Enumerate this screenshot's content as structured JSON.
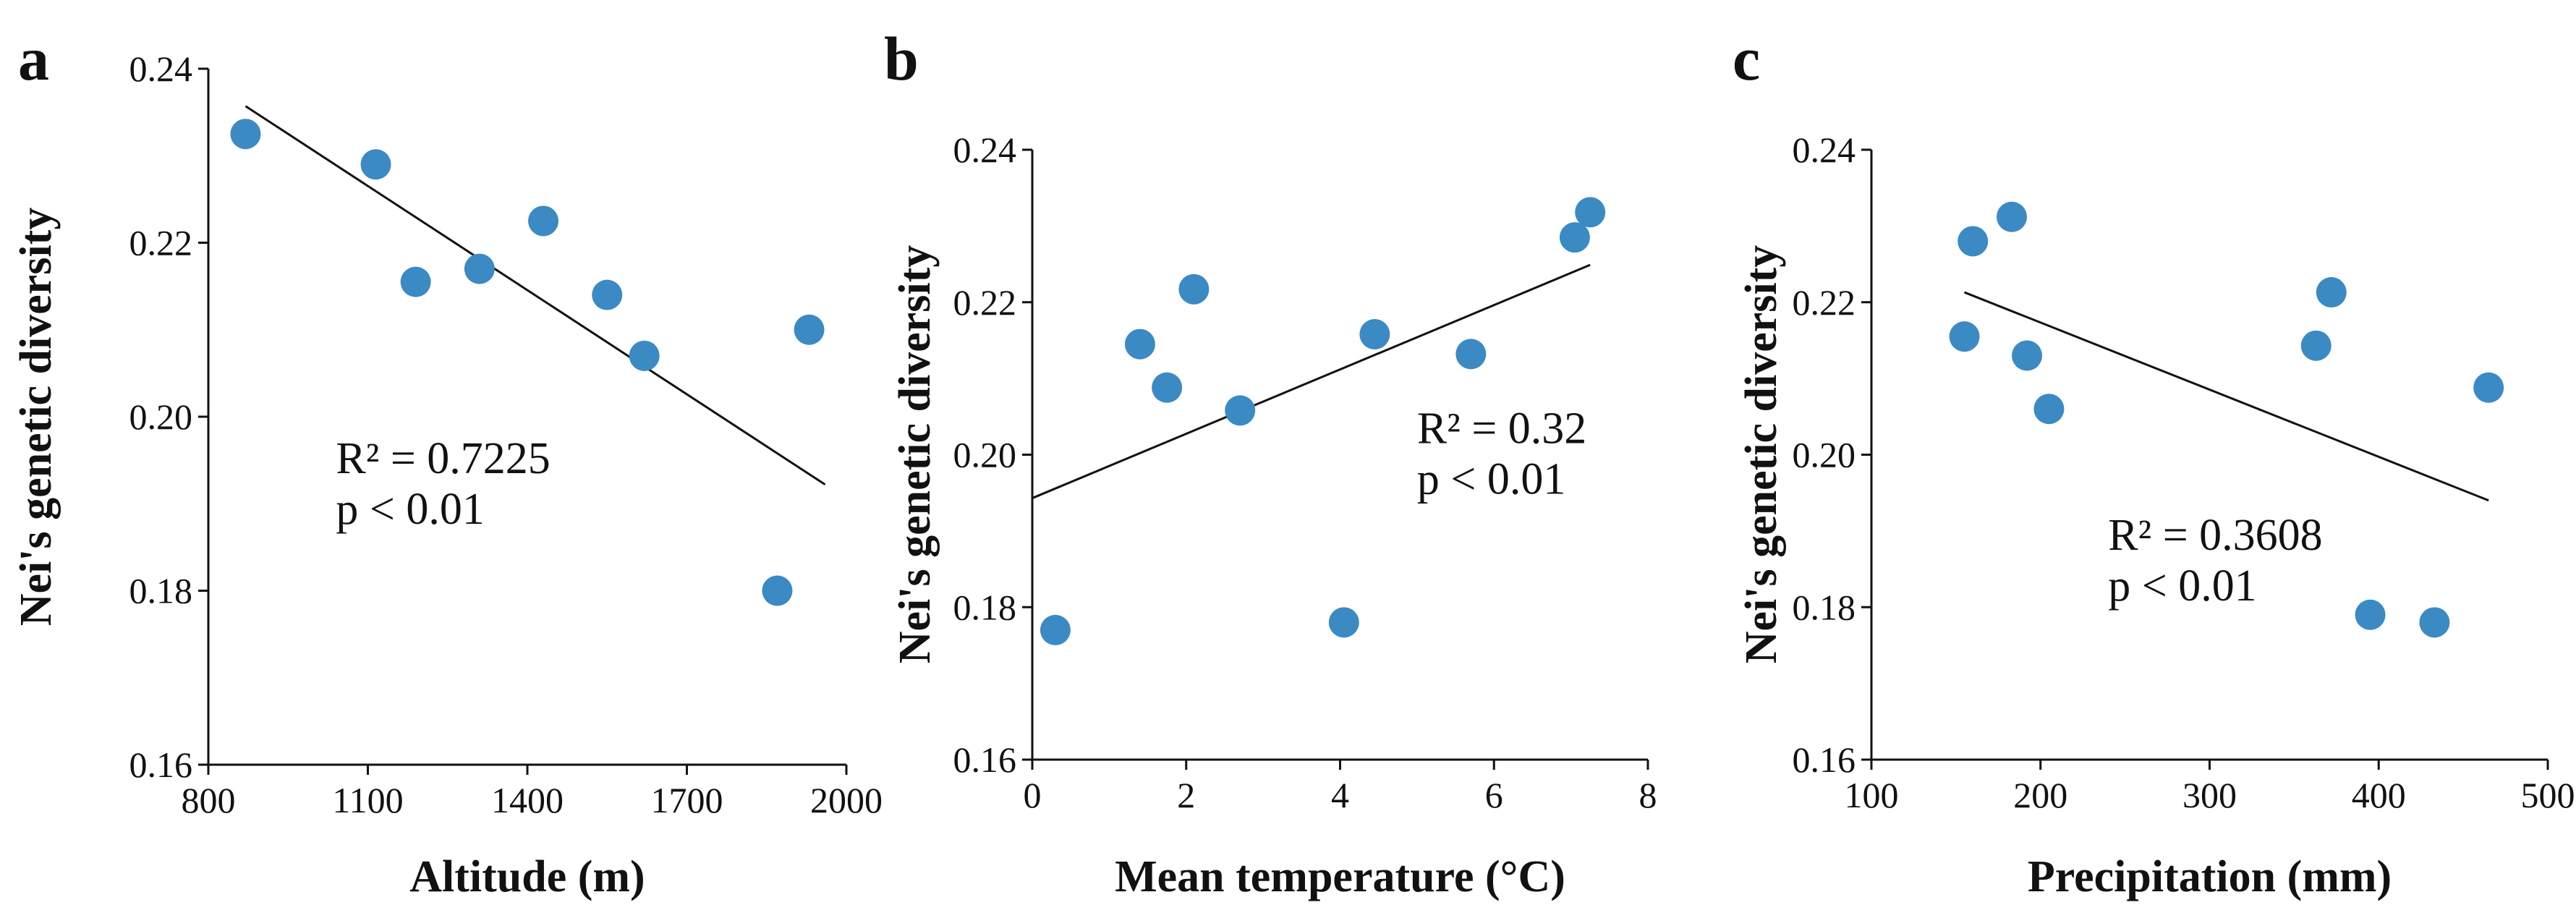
{
  "figure": {
    "marker_color": "#3b8ac4",
    "line_color": "#111111"
  },
  "chart_data": [
    {
      "type": "scatter",
      "panel_label": "a",
      "title": "",
      "xlabel": "Altitude (m)",
      "ylabel": "Nei's genetic diversity",
      "xlim": [
        800,
        2000
      ],
      "ylim": [
        0.16,
        0.24
      ],
      "xticks": [
        800,
        1100,
        1400,
        1700,
        2000
      ],
      "yticks": [
        0.16,
        0.18,
        0.2,
        0.22,
        0.24
      ],
      "xtick_labels": [
        "800",
        "1100",
        "1400",
        "1700",
        "2000"
      ],
      "ytick_labels": [
        "0.16",
        "0.18",
        "0.20",
        "0.22",
        "0.24"
      ],
      "x": [
        870,
        1115,
        1190,
        1310,
        1430,
        1550,
        1620,
        1870,
        1930
      ],
      "y": [
        0.2325,
        0.229,
        0.2155,
        0.217,
        0.2225,
        0.214,
        0.207,
        0.18,
        0.21
      ],
      "trendline": {
        "x": [
          870,
          1960
        ],
        "y": [
          0.2357,
          0.1922
        ]
      },
      "annotation": [
        "R² = 0.7225",
        "p < 0.01"
      ],
      "annotation_pos": [
        1040,
        0.1935
      ]
    },
    {
      "type": "scatter",
      "panel_label": "b",
      "title": "",
      "xlabel": "Mean temperature (°C)",
      "ylabel": "Nei's genetic diversity",
      "xlim": [
        0,
        8
      ],
      "ylim": [
        0.16,
        0.24
      ],
      "xticks": [
        0,
        2,
        4,
        6,
        8
      ],
      "yticks": [
        0.16,
        0.18,
        0.2,
        0.22,
        0.24
      ],
      "xtick_labels": [
        "0",
        "2",
        "4",
        "6",
        "8"
      ],
      "ytick_labels": [
        "0.16",
        "0.18",
        "0.20",
        "0.22",
        "0.24"
      ],
      "x": [
        0.3,
        1.4,
        1.75,
        2.1,
        2.7,
        4.05,
        4.45,
        5.7,
        7.05,
        7.25
      ],
      "y": [
        0.177,
        0.2145,
        0.2088,
        0.2217,
        0.2058,
        0.178,
        0.2158,
        0.2132,
        0.2285,
        0.2318
      ],
      "trendline": {
        "x": [
          0,
          7.25
        ],
        "y": [
          0.1943,
          0.2249
        ]
      },
      "annotation": [
        "R² = 0.32",
        "p < 0.01"
      ],
      "annotation_pos": [
        5.0,
        0.2015
      ]
    },
    {
      "type": "scatter",
      "panel_label": "c",
      "title": "",
      "xlabel": "Precipitation (mm)",
      "ylabel": "Nei's genetic diversity",
      "xlim": [
        100,
        500
      ],
      "ylim": [
        0.16,
        0.24
      ],
      "xticks": [
        100,
        200,
        300,
        400,
        500
      ],
      "yticks": [
        0.16,
        0.18,
        0.2,
        0.22,
        0.24
      ],
      "xtick_labels": [
        "100",
        "200",
        "300",
        "400",
        "500"
      ],
      "ytick_labels": [
        "0.16",
        "0.18",
        "0.20",
        "0.22",
        "0.24"
      ],
      "x": [
        155,
        160,
        183,
        192,
        205,
        363,
        372,
        395,
        433,
        465
      ],
      "y": [
        0.2155,
        0.228,
        0.2312,
        0.213,
        0.206,
        0.2143,
        0.2213,
        0.179,
        0.178,
        0.2088
      ],
      "trendline": {
        "x": [
          155,
          465
        ],
        "y": [
          0.2213,
          0.194
        ]
      },
      "annotation": [
        "R² = 0.3608",
        "p < 0.01"
      ],
      "annotation_pos": [
        240,
        0.1875
      ]
    }
  ]
}
